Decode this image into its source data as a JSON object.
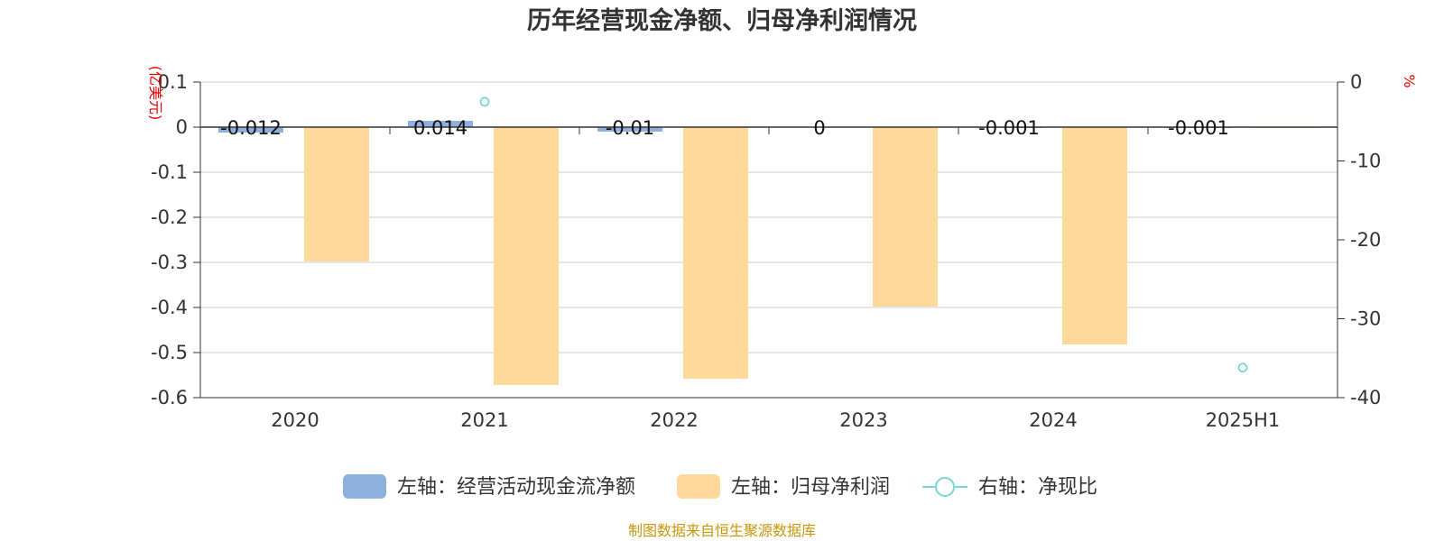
{
  "chart_data": {
    "type": "bar",
    "title": "历年经营现金净额、归母净利润情况",
    "categories": [
      "2020",
      "2021",
      "2022",
      "2023",
      "2024",
      "2025H1"
    ],
    "left_axis": {
      "unit_label": "(亿美元)",
      "ylim": [
        -0.6,
        0.1
      ],
      "ticks": [
        0.1,
        0,
        -0.1,
        -0.2,
        -0.3,
        -0.4,
        -0.5,
        -0.6
      ],
      "tick_labels": [
        "0.1",
        "0",
        "-0.1",
        "-0.2",
        "-0.3",
        "-0.4",
        "-0.5",
        "-0.6"
      ]
    },
    "right_axis": {
      "unit_label": "%",
      "ylim": [
        -40,
        0
      ],
      "ticks": [
        0,
        -10,
        -20,
        -30,
        -40
      ],
      "tick_labels": [
        "0",
        "-10",
        "-20",
        "-30",
        "-40"
      ]
    },
    "series": [
      {
        "name": "左轴：经营活动现金流净额",
        "type": "bar",
        "axis": "left",
        "color": "#8fb0dc",
        "values": [
          -0.012,
          0.014,
          -0.01,
          0,
          -0.001,
          -0.001
        ],
        "labels": [
          "-0.012",
          "0.014",
          "-0.01",
          "0",
          "-0.001",
          "-0.001"
        ]
      },
      {
        "name": "左轴：归母净利润",
        "type": "bar",
        "axis": "right_of_pair",
        "color": "#ffd999",
        "values": [
          -0.298,
          -0.572,
          -0.558,
          -0.398,
          -0.482,
          -0.001
        ]
      },
      {
        "name": "右轴：净现比",
        "type": "scatter",
        "axis": "right",
        "color": "#7dd3dc",
        "values": [
          null,
          -2.5,
          null,
          null,
          null,
          -36.2
        ]
      }
    ],
    "grid": true,
    "legend_position": "bottom"
  },
  "source": "制图数据来自恒生聚源数据库"
}
